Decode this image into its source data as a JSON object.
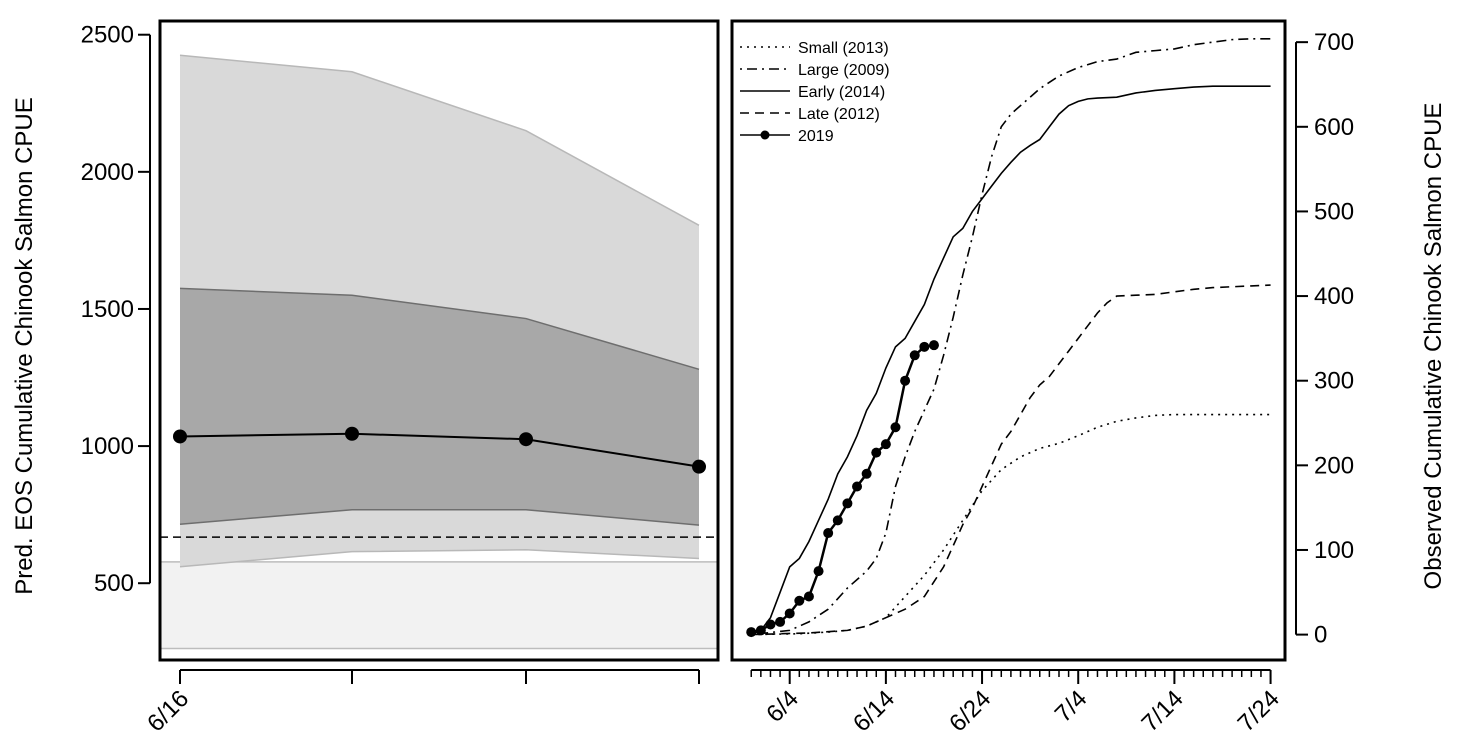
{
  "chart_data": [
    {
      "type": "line",
      "ylabel": "Pred. EOS Cumulative Chinook Salmon CPUE",
      "xlabel": "",
      "x_tick_labels": [
        "6/16",
        "",
        "",
        ""
      ],
      "yticks": [
        500,
        1000,
        1500,
        2000,
        2500
      ],
      "ylim": [
        220,
        2550
      ],
      "x": [
        1,
        2,
        3,
        4
      ],
      "series": [
        {
          "type": "line-markers",
          "values": [
            1035,
            1045,
            1025,
            925
          ]
        }
      ],
      "bands": [
        {
          "role": "outer",
          "lower": [
            560,
            615,
            622,
            590
          ],
          "upper": [
            2425,
            2365,
            2150,
            1805
          ],
          "color": "#d9d9d9"
        },
        {
          "role": "inner",
          "lower": [
            715,
            768,
            768,
            712
          ],
          "upper": [
            1575,
            1550,
            1465,
            1280
          ],
          "color": "#a8a8a8"
        }
      ],
      "reference_lines": [
        {
          "style": "dashed",
          "value": 668
        }
      ],
      "reference_band": {
        "lower": 262,
        "upper": 578,
        "color": "#f2f2f2"
      },
      "grid": false
    },
    {
      "type": "line",
      "ylabel": "Observed Cumulative Chinook Salmon CPUE",
      "xlabel": "",
      "x_tick_labels": [
        "6/4",
        "6/14",
        "6/24",
        "7/4",
        "7/14",
        "7/24"
      ],
      "x_tick_days": [
        4,
        14,
        24,
        34,
        44,
        54
      ],
      "xlim": [
        -2,
        55.5
      ],
      "yticks": [
        0,
        100,
        200,
        300,
        400,
        500,
        600,
        700
      ],
      "ylim": [
        -30,
        725
      ],
      "y_axis_side": "right",
      "legend_position": "top-left",
      "grid": false,
      "series": [
        {
          "name": "Small (2013)",
          "style": "dotted",
          "x": [
            0,
            5,
            8,
            10,
            12,
            14,
            16,
            18,
            20,
            22,
            24,
            26,
            28,
            30,
            32,
            34,
            36,
            38,
            40,
            42,
            44,
            46,
            48,
            50,
            52,
            54
          ],
          "values": [
            0,
            1,
            3,
            5,
            10,
            20,
            45,
            70,
            100,
            135,
            170,
            195,
            210,
            220,
            226,
            235,
            245,
            252,
            256,
            259,
            260,
            260,
            260,
            260,
            260,
            260
          ]
        },
        {
          "name": "Large (2009)",
          "style": "dotdash",
          "x": [
            0,
            4,
            6,
            8,
            10,
            12,
            13,
            14,
            15,
            16,
            17,
            18,
            19,
            20,
            21,
            22,
            23,
            24,
            25,
            26,
            27,
            28,
            30,
            32,
            34,
            36,
            38,
            40,
            42,
            44,
            46,
            48,
            50,
            52,
            54
          ],
          "values": [
            0,
            5,
            15,
            30,
            55,
            75,
            90,
            120,
            175,
            210,
            240,
            265,
            290,
            330,
            375,
            425,
            470,
            520,
            565,
            600,
            615,
            625,
            645,
            660,
            670,
            677,
            680,
            688,
            690,
            692,
            697,
            700,
            703,
            704,
            704
          ]
        },
        {
          "name": "Early (2014)",
          "style": "solid",
          "x": [
            0,
            1,
            2,
            3,
            4,
            5,
            6,
            7,
            8,
            9,
            10,
            11,
            12,
            13,
            14,
            15,
            16,
            17,
            18,
            19,
            20,
            21,
            22,
            23,
            24,
            25,
            26,
            27,
            28,
            29,
            30,
            31,
            32,
            33,
            34,
            35,
            36,
            38,
            40,
            42,
            44,
            46,
            48,
            50,
            52,
            54
          ],
          "values": [
            0,
            5,
            20,
            50,
            80,
            90,
            110,
            135,
            160,
            190,
            210,
            235,
            265,
            285,
            315,
            340,
            350,
            370,
            390,
            420,
            445,
            470,
            480,
            500,
            515,
            530,
            545,
            558,
            570,
            578,
            585,
            600,
            615,
            625,
            630,
            633,
            634,
            635,
            640,
            643,
            645,
            647,
            648,
            648,
            648,
            648
          ]
        },
        {
          "name": "Late (2012)",
          "style": "dashed",
          "x": [
            0,
            6,
            10,
            12,
            14,
            16,
            18,
            20,
            22,
            23,
            24,
            25,
            26,
            27,
            28,
            29,
            30,
            31,
            32,
            33,
            34,
            35,
            36,
            37,
            38,
            40,
            42,
            44,
            46,
            48,
            50,
            52,
            54
          ],
          "values": [
            0,
            2,
            5,
            10,
            20,
            30,
            45,
            80,
            130,
            150,
            175,
            200,
            225,
            240,
            260,
            280,
            295,
            305,
            320,
            335,
            350,
            365,
            380,
            392,
            400,
            401,
            402,
            405,
            408,
            410,
            411,
            412,
            413
          ]
        },
        {
          "name": "2019",
          "style": "solid-markers",
          "x": [
            0,
            1,
            2,
            3,
            4,
            5,
            6,
            7,
            8,
            9,
            10,
            11,
            12,
            13,
            14,
            15,
            16,
            17,
            18,
            19
          ],
          "values": [
            3,
            5,
            12,
            15,
            25,
            40,
            45,
            75,
            120,
            135,
            155,
            175,
            190,
            215,
            225,
            245,
            300,
            330,
            340,
            342
          ]
        }
      ]
    }
  ]
}
